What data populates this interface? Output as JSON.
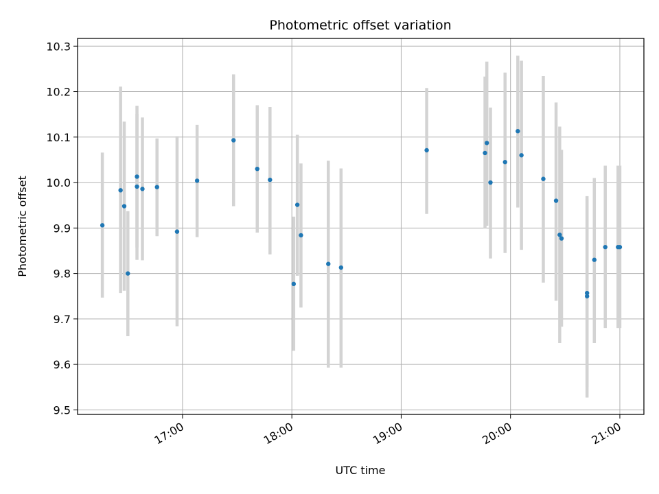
{
  "chart_data": {
    "type": "scatter",
    "title": "Photometric offset variation",
    "xlabel": "UTC time",
    "ylabel": "Photometric offset",
    "x_ticks": [
      "17:00",
      "18:00",
      "19:00",
      "20:00",
      "21:00"
    ],
    "x_tick_hours": [
      17,
      18,
      19,
      20,
      21
    ],
    "xlim_hours": [
      16.04,
      21.22
    ],
    "y_ticks": [
      "9.5",
      "9.6",
      "9.7",
      "9.8",
      "9.9",
      "10.0",
      "10.1",
      "10.2",
      "10.3"
    ],
    "y_tick_values": [
      9.5,
      9.6,
      9.7,
      9.8,
      9.9,
      10.0,
      10.1,
      10.2,
      10.3
    ],
    "ylim": [
      9.49,
      10.317
    ],
    "grid": true,
    "colors": {
      "marker": "#1f77b4",
      "errorbar": "#d3d3d3",
      "grid": "#b0b0b0"
    },
    "points": [
      {
        "t": "16:16",
        "y": 9.906,
        "lo": 9.747,
        "hi": 10.066
      },
      {
        "t": "16:26",
        "y": 9.983,
        "lo": 9.757,
        "hi": 10.211
      },
      {
        "t": "16:28",
        "y": 9.948,
        "lo": 9.762,
        "hi": 10.134
      },
      {
        "t": "16:30",
        "y": 9.8,
        "lo": 9.662,
        "hi": 9.937
      },
      {
        "t": "16:35",
        "y": 9.991,
        "lo": 9.83,
        "hi": 10.151
      },
      {
        "t": "16:35",
        "y": 10.013,
        "lo": 9.857,
        "hi": 10.169
      },
      {
        "t": "16:38",
        "y": 9.986,
        "lo": 9.829,
        "hi": 10.143
      },
      {
        "t": "16:46",
        "y": 9.99,
        "lo": 9.882,
        "hi": 10.097
      },
      {
        "t": "16:57",
        "y": 9.892,
        "lo": 9.684,
        "hi": 10.102
      },
      {
        "t": "17:08",
        "y": 10.004,
        "lo": 9.88,
        "hi": 10.127
      },
      {
        "t": "17:28",
        "y": 10.093,
        "lo": 9.948,
        "hi": 10.238
      },
      {
        "t": "17:41",
        "y": 10.03,
        "lo": 9.89,
        "hi": 10.17
      },
      {
        "t": "17:48",
        "y": 10.006,
        "lo": 9.842,
        "hi": 10.166
      },
      {
        "t": "18:01",
        "y": 9.777,
        "lo": 9.63,
        "hi": 9.925
      },
      {
        "t": "18:03",
        "y": 9.951,
        "lo": 9.795,
        "hi": 10.105
      },
      {
        "t": "18:05",
        "y": 9.884,
        "lo": 9.725,
        "hi": 10.042
      },
      {
        "t": "18:20",
        "y": 9.821,
        "lo": 9.593,
        "hi": 10.048
      },
      {
        "t": "18:27",
        "y": 9.813,
        "lo": 9.593,
        "hi": 10.031
      },
      {
        "t": "19:14",
        "y": 10.071,
        "lo": 9.931,
        "hi": 10.208
      },
      {
        "t": "19:46",
        "y": 10.065,
        "lo": 9.9,
        "hi": 10.233
      },
      {
        "t": "19:47",
        "y": 10.087,
        "lo": 9.905,
        "hi": 10.266
      },
      {
        "t": "19:49",
        "y": 10.0,
        "lo": 9.833,
        "hi": 10.165
      },
      {
        "t": "19:57",
        "y": 10.045,
        "lo": 9.845,
        "hi": 10.242
      },
      {
        "t": "20:04",
        "y": 10.113,
        "lo": 9.945,
        "hi": 10.279
      },
      {
        "t": "20:06",
        "y": 10.06,
        "lo": 9.852,
        "hi": 10.268
      },
      {
        "t": "20:18",
        "y": 10.008,
        "lo": 9.78,
        "hi": 10.234
      },
      {
        "t": "20:25",
        "y": 9.96,
        "lo": 9.74,
        "hi": 10.176
      },
      {
        "t": "20:27",
        "y": 9.885,
        "lo": 9.647,
        "hi": 10.123
      },
      {
        "t": "20:28",
        "y": 9.877,
        "lo": 9.683,
        "hi": 10.072
      },
      {
        "t": "20:42",
        "y": 9.757,
        "lo": 9.551,
        "hi": 9.97
      },
      {
        "t": "20:42",
        "y": 9.75,
        "lo": 9.527,
        "hi": 9.963
      },
      {
        "t": "20:46",
        "y": 9.83,
        "lo": 9.647,
        "hi": 10.01
      },
      {
        "t": "20:52",
        "y": 9.858,
        "lo": 9.68,
        "hi": 10.037
      },
      {
        "t": "20:59",
        "y": 9.858,
        "lo": 9.68,
        "hi": 10.037
      },
      {
        "t": "21:00",
        "y": 9.858,
        "lo": 9.68,
        "hi": 10.037
      }
    ]
  }
}
